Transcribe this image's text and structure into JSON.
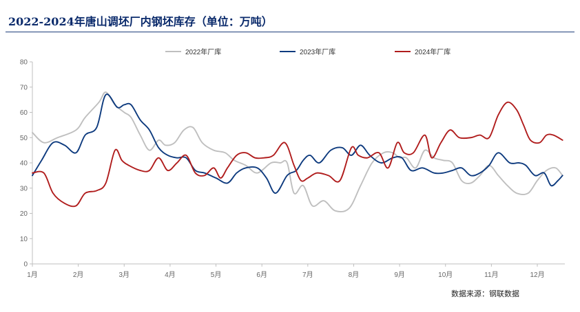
{
  "title": "2022-2024年唐山调坯厂内钢坯库存（单位：万吨）",
  "source": "数据来源：钢联数据",
  "chart_data": {
    "type": "line",
    "title": "2022-2024年唐山调坯厂内钢坯库存（单位：万吨）",
    "xlabel": "",
    "ylabel": "",
    "ylim": [
      0,
      80
    ],
    "yticks": [
      0,
      10,
      20,
      30,
      40,
      50,
      60,
      70,
      80
    ],
    "xlim": [
      1,
      12.6
    ],
    "month_ticks": [
      1,
      2,
      3,
      4,
      5,
      6,
      7,
      8,
      9,
      10,
      11,
      12
    ],
    "month_labels": [
      "1月",
      "2月",
      "3月",
      "4月",
      "5月",
      "6月",
      "7月",
      "8月",
      "9月",
      "10月",
      "11月",
      "12月"
    ],
    "legend_position": "top-center",
    "series": [
      {
        "name": "2022年厂库",
        "color": "#bfbfbf",
        "x": [
          1.0,
          1.25,
          1.55,
          1.95,
          2.15,
          2.45,
          2.6,
          2.8,
          3.0,
          3.15,
          3.35,
          3.55,
          3.75,
          3.9,
          4.1,
          4.3,
          4.5,
          4.7,
          4.95,
          5.2,
          5.4,
          5.65,
          5.9,
          6.2,
          6.4,
          6.55,
          6.7,
          6.9,
          7.1,
          7.35,
          7.6,
          7.9,
          8.15,
          8.4,
          8.65,
          8.85,
          9.0,
          9.15,
          9.35,
          9.55,
          9.75,
          9.95,
          10.15,
          10.35,
          10.55,
          10.75,
          10.95,
          11.15,
          11.35,
          11.55,
          11.8,
          12.0,
          12.2,
          12.4,
          12.55
        ],
        "values": [
          52,
          48,
          50,
          53,
          58,
          64,
          68,
          63,
          60,
          58,
          51,
          45,
          49,
          47,
          48,
          53,
          54,
          48,
          45,
          44,
          41,
          39,
          36,
          40,
          40,
          40,
          28,
          31,
          23,
          25,
          21,
          22,
          31,
          40,
          44,
          44,
          42,
          42,
          38,
          45,
          42,
          41,
          40,
          33,
          32,
          35,
          39,
          35,
          31,
          28,
          28,
          33,
          37,
          38,
          35
        ]
      },
      {
        "name": "2023年厂库",
        "color": "#0d3a7e",
        "x": [
          1.0,
          1.2,
          1.45,
          1.7,
          1.95,
          2.15,
          2.4,
          2.6,
          2.85,
          3.0,
          3.15,
          3.35,
          3.55,
          3.75,
          3.95,
          4.15,
          4.35,
          4.55,
          4.75,
          5.0,
          5.25,
          5.45,
          5.65,
          5.9,
          6.1,
          6.3,
          6.55,
          6.75,
          6.9,
          7.05,
          7.25,
          7.5,
          7.75,
          7.95,
          8.15,
          8.35,
          8.6,
          8.85,
          9.05,
          9.25,
          9.5,
          9.75,
          9.95,
          10.15,
          10.35,
          10.55,
          10.75,
          10.95,
          11.15,
          11.4,
          11.6,
          11.75,
          11.95,
          12.15,
          12.3,
          12.45,
          12.55
        ],
        "values": [
          35,
          41,
          48,
          47,
          44,
          51,
          54,
          67,
          62,
          63,
          63,
          57,
          53,
          46,
          43,
          42,
          42,
          37,
          36,
          34,
          32,
          36,
          38,
          38,
          34,
          28,
          35,
          37,
          41,
          43,
          40,
          45,
          46,
          43,
          47,
          43,
          40,
          42,
          42,
          37,
          38,
          36,
          36,
          37,
          38,
          35,
          36,
          39,
          44,
          40,
          40,
          39,
          35,
          36,
          31,
          33,
          35
        ]
      },
      {
        "name": "2024年厂库",
        "color": "#b01c1c",
        "x": [
          1.0,
          1.25,
          1.45,
          1.7,
          1.95,
          2.15,
          2.4,
          2.6,
          2.8,
          2.95,
          3.1,
          3.35,
          3.55,
          3.75,
          3.95,
          4.15,
          4.35,
          4.55,
          4.75,
          4.95,
          5.1,
          5.25,
          5.45,
          5.65,
          5.85,
          6.05,
          6.25,
          6.5,
          6.7,
          6.85,
          7.0,
          7.2,
          7.45,
          7.7,
          7.95,
          8.1,
          8.3,
          8.55,
          8.75,
          8.95,
          9.1,
          9.3,
          9.55,
          9.7,
          9.9,
          10.1,
          10.3,
          10.55,
          10.75,
          10.95,
          11.15,
          11.35,
          11.55,
          11.7,
          11.85,
          12.05,
          12.2,
          12.35,
          12.55
        ],
        "values": [
          36,
          36,
          28,
          24,
          23,
          28,
          29,
          32,
          45,
          41,
          39,
          37,
          37,
          42,
          37,
          40,
          43,
          36,
          35,
          38,
          34,
          38,
          43,
          44,
          42,
          42,
          43,
          48,
          39,
          33,
          34,
          36,
          35,
          33,
          46,
          43,
          42,
          44,
          38,
          48,
          44,
          44,
          51,
          42,
          48,
          53,
          50,
          50,
          51,
          50,
          59,
          64,
          61,
          55,
          49,
          48,
          51,
          51,
          49
        ]
      }
    ]
  }
}
